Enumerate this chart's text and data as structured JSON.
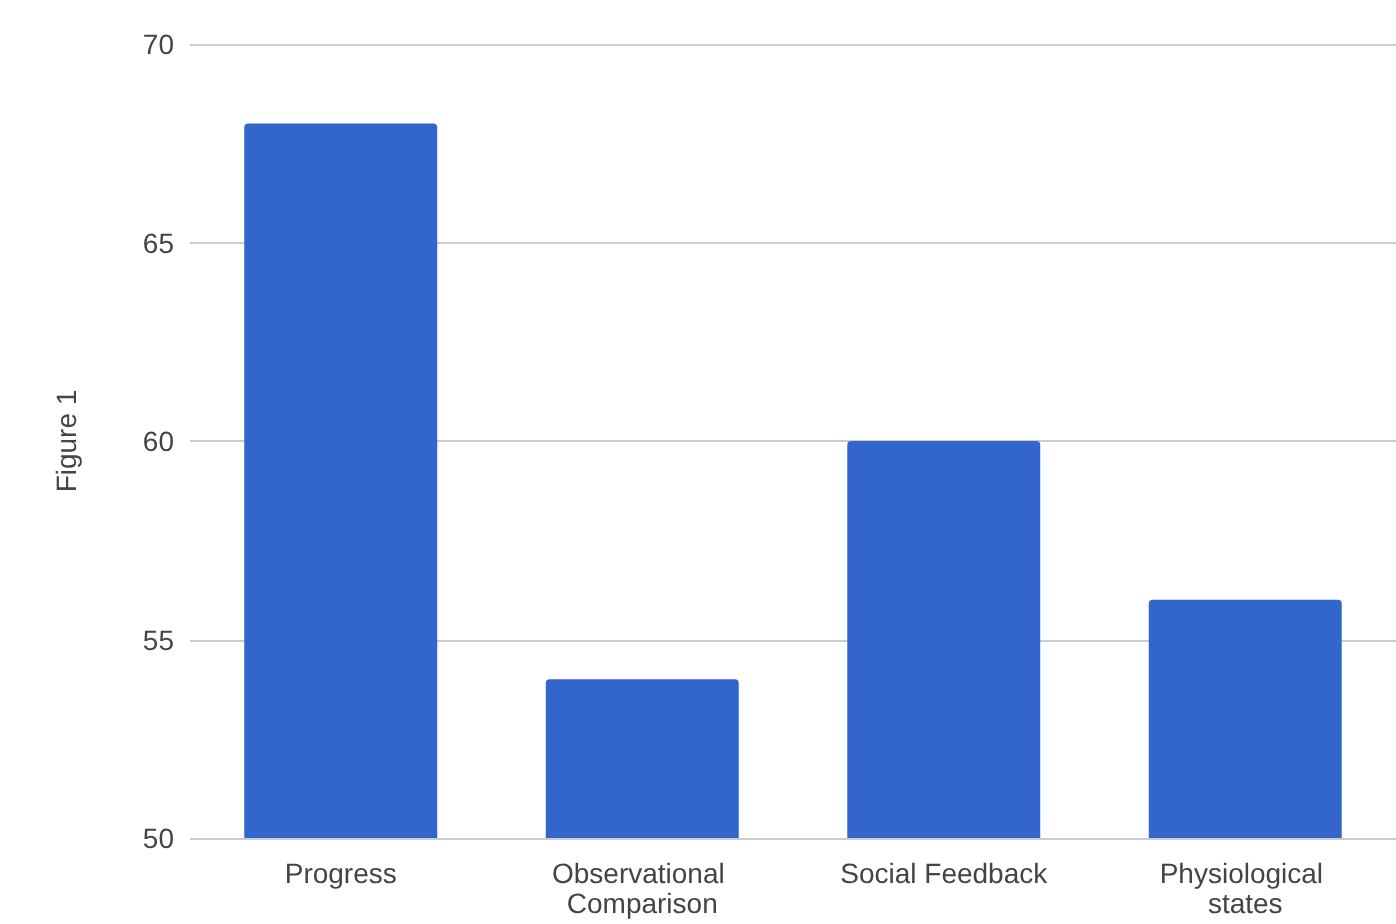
{
  "chart_data": {
    "type": "bar",
    "ylabel": "Figure 1",
    "categories": [
      "Progress",
      "Observational Comparison",
      "Social Feedback",
      "Physiological states"
    ],
    "values": [
      68,
      54,
      60,
      56
    ],
    "color": "#3366cc",
    "ylim": [
      50,
      70
    ],
    "yticks": [
      50,
      55,
      60,
      65,
      70
    ],
    "grid": "y"
  }
}
